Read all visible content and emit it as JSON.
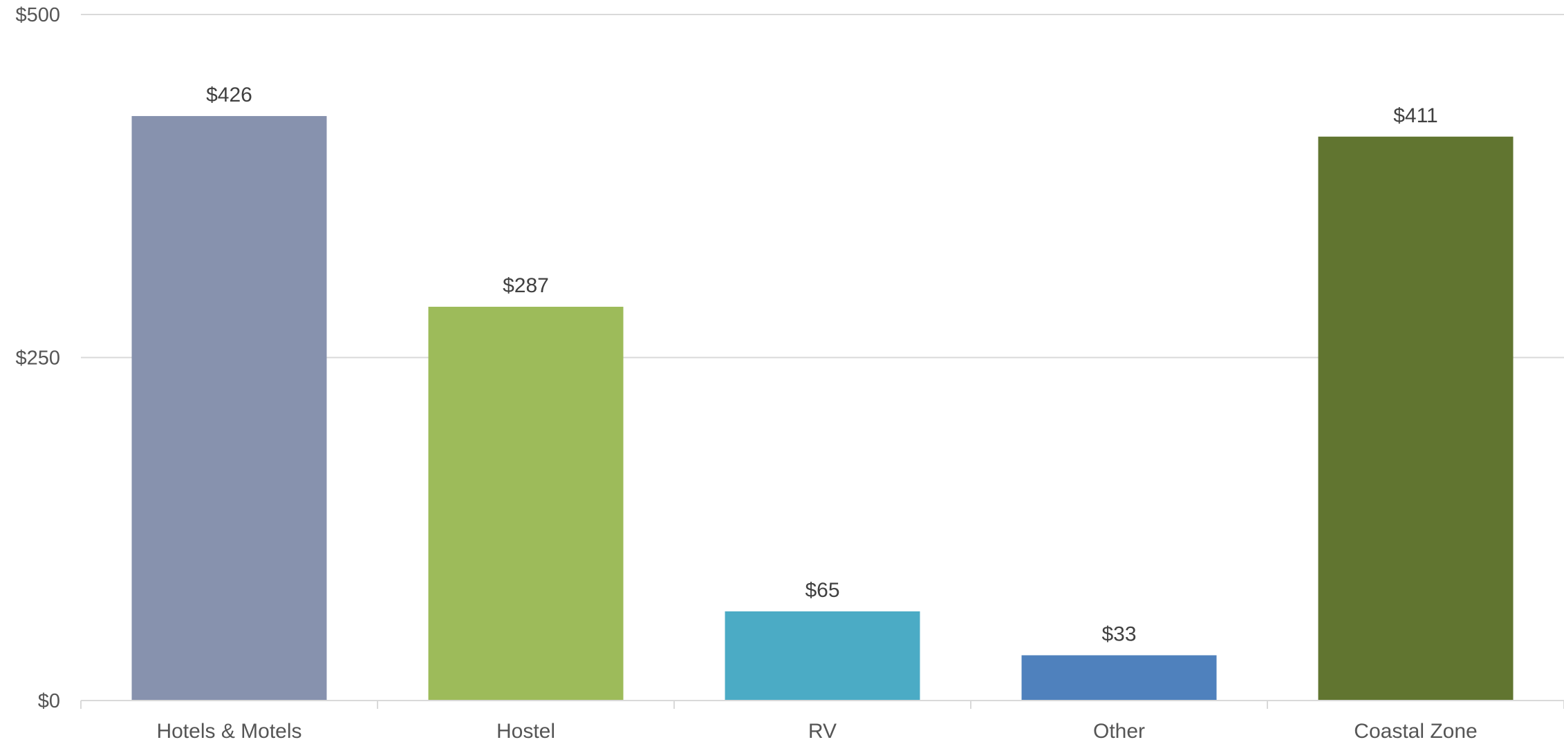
{
  "chart_data": {
    "type": "bar",
    "title": "",
    "xlabel": "",
    "ylabel": "",
    "categories": [
      "Hotels & Motels",
      "Hostel",
      "RV",
      "Other",
      "Coastal Zone"
    ],
    "values": [
      426,
      287,
      65,
      33,
      411
    ],
    "data_labels": [
      "$426",
      "$287",
      "$65",
      "$33",
      "$411"
    ],
    "bar_colors": [
      "#8792AE",
      "#9DBB5A",
      "#4BABC5",
      "#4F81BD",
      "#617530"
    ],
    "ylim": [
      0,
      500
    ],
    "y_ticks": [
      0,
      250,
      500
    ],
    "y_tick_labels": [
      "$0",
      "$250",
      "$500"
    ],
    "grid": true,
    "legend": "none"
  }
}
